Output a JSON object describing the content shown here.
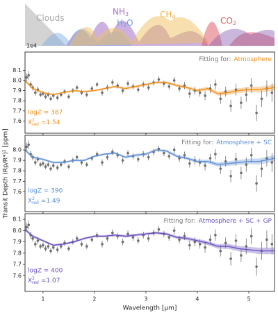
{
  "opacity_panel": {
    "labels": [
      {
        "base": "Clouds",
        "color": "#a8a8a8"
      },
      {
        "base": "NH",
        "sub": "3",
        "color": "#b070d0"
      },
      {
        "base": "H",
        "sub": "2",
        "tail": "O",
        "color": "#6aa0e0"
      },
      {
        "base": "CH",
        "sub": "4",
        "color": "#f0b040"
      },
      {
        "base": "CO",
        "sub": "2",
        "color": "#e05a5a"
      }
    ]
  },
  "chart_data": {
    "type": "line",
    "x_label": "Wavelength [μm]",
    "y_label": "Transit Depth (Rp/R*)² [ppm]",
    "y_offset_label": "1e4",
    "fitting_prefix": "Fitting for:",
    "chi2_symbol": "X",
    "chi2_sup": "2",
    "chi2_sub": "red",
    "xlim": [
      0.65,
      5.5
    ],
    "xticks": [
      1,
      2,
      3,
      4,
      5
    ],
    "observations": {
      "color": "#6e6e6e",
      "x": [
        0.68,
        0.72,
        0.76,
        0.8,
        0.85,
        0.9,
        0.95,
        1.0,
        1.05,
        1.1,
        1.15,
        1.2,
        1.28,
        1.35,
        1.42,
        1.5,
        1.58,
        1.66,
        1.75,
        1.85,
        1.95,
        2.05,
        2.15,
        2.25,
        2.35,
        2.45,
        2.55,
        2.65,
        2.75,
        2.85,
        2.95,
        3.05,
        3.15,
        3.25,
        3.35,
        3.45,
        3.55,
        3.65,
        3.75,
        3.85,
        3.95,
        4.05,
        4.15,
        4.25,
        4.35,
        4.45,
        4.55,
        4.65,
        4.75,
        4.85,
        4.95,
        5.05,
        5.15,
        5.25,
        5.35,
        5.45
      ],
      "values": [
        8.03,
        8.05,
        7.96,
        7.93,
        7.88,
        7.91,
        7.86,
        7.87,
        7.84,
        7.86,
        7.82,
        7.85,
        7.83,
        7.86,
        7.89,
        7.84,
        7.9,
        7.93,
        7.88,
        7.86,
        7.92,
        7.96,
        7.88,
        7.93,
        7.98,
        7.95,
        7.9,
        7.97,
        7.94,
        7.91,
        7.96,
        7.93,
        7.98,
        8.01,
        7.97,
        7.94,
        8.0,
        7.92,
        7.95,
        7.87,
        7.9,
        7.88,
        7.85,
        7.92,
        7.96,
        7.82,
        7.89,
        7.75,
        7.91,
        7.78,
        7.86,
        7.95,
        7.68,
        7.82,
        7.92,
        7.88
      ],
      "errors": [
        0.04,
        0.04,
        0.03,
        0.03,
        0.03,
        0.03,
        0.025,
        0.025,
        0.025,
        0.025,
        0.025,
        0.025,
        0.025,
        0.025,
        0.025,
        0.025,
        0.025,
        0.025,
        0.025,
        0.025,
        0.025,
        0.025,
        0.03,
        0.03,
        0.03,
        0.03,
        0.03,
        0.03,
        0.03,
        0.03,
        0.03,
        0.03,
        0.03,
        0.03,
        0.03,
        0.03,
        0.035,
        0.035,
        0.035,
        0.04,
        0.04,
        0.04,
        0.045,
        0.045,
        0.05,
        0.05,
        0.05,
        0.06,
        0.06,
        0.06,
        0.07,
        0.07,
        0.08,
        0.08,
        0.08,
        0.09
      ]
    },
    "model_x": [
      0.65,
      0.8,
      1.0,
      1.2,
      1.4,
      1.6,
      1.8,
      2.0,
      2.2,
      2.4,
      2.6,
      2.8,
      3.0,
      3.2,
      3.4,
      3.6,
      3.8,
      4.0,
      4.2,
      4.4,
      4.6,
      4.8,
      5.0,
      5.2,
      5.5
    ],
    "panels": [
      {
        "fit": "Atmosphere",
        "color": "#f0901c",
        "logz_label": "logZ = 387",
        "chi2_value": "=1.54",
        "ylim": [
          7.48,
          8.28
        ],
        "yticks": [
          7.6,
          7.7,
          7.8,
          7.9,
          {
            "value": 8.0,
            "label": "8.0"
          },
          8.1
        ],
        "model": {
          "values": [
            8.0,
            7.92,
            7.88,
            7.86,
            7.88,
            7.9,
            7.89,
            7.9,
            7.92,
            7.94,
            7.92,
            7.94,
            7.96,
            7.98,
            7.98,
            7.95,
            7.93,
            7.9,
            7.92,
            7.87,
            7.88,
            7.9,
            7.91,
            7.91,
            7.93
          ],
          "errors": [
            0.015,
            0.012,
            0.01,
            0.01,
            0.01,
            0.01,
            0.01,
            0.01,
            0.01,
            0.01,
            0.012,
            0.012,
            0.012,
            0.012,
            0.012,
            0.014,
            0.015,
            0.016,
            0.018,
            0.02,
            0.022,
            0.024,
            0.026,
            0.028,
            0.03
          ]
        }
      },
      {
        "fit": "Atmosphere + SC",
        "color": "#5b8fd8",
        "logz_label": "logZ = 390",
        "chi2_value": "=1.49",
        "ylim": [
          7.41,
          8.14
        ],
        "yticks": [
          7.6,
          7.7,
          7.8,
          7.9,
          {
            "value": 8.0,
            "label": "8.0"
          }
        ],
        "model": {
          "values": [
            8.0,
            7.93,
            7.91,
            7.88,
            7.88,
            7.9,
            7.9,
            7.94,
            7.96,
            7.97,
            7.93,
            7.95,
            7.96,
            8.0,
            7.99,
            7.94,
            7.92,
            7.89,
            7.89,
            7.86,
            7.87,
            7.88,
            7.89,
            7.89,
            7.92
          ],
          "errors": [
            0.015,
            0.012,
            0.01,
            0.01,
            0.01,
            0.01,
            0.01,
            0.01,
            0.01,
            0.01,
            0.012,
            0.012,
            0.012,
            0.012,
            0.012,
            0.014,
            0.015,
            0.016,
            0.018,
            0.02,
            0.022,
            0.024,
            0.026,
            0.028,
            0.03
          ]
        }
      },
      {
        "fit": "Atmosphere + SC + GP",
        "color": "#6a4fc0",
        "logz_label": "logZ = 400",
        "chi2_value": "=1.07",
        "ylim": [
          7.46,
          8.15
        ],
        "yticks": [
          7.6,
          7.7,
          7.8,
          7.9,
          {
            "value": 8.0,
            "label": "8.0"
          },
          8.1
        ],
        "model": {
          "values": [
            8.01,
            7.95,
            7.91,
            7.87,
            7.88,
            7.9,
            7.93,
            7.95,
            7.95,
            7.96,
            7.95,
            7.96,
            7.97,
            7.98,
            7.97,
            7.94,
            7.93,
            7.91,
            7.89,
            7.86,
            7.86,
            7.84,
            7.83,
            7.82,
            7.82
          ],
          "errors": [
            0.015,
            0.012,
            0.01,
            0.01,
            0.01,
            0.01,
            0.01,
            0.01,
            0.01,
            0.01,
            0.012,
            0.012,
            0.012,
            0.012,
            0.012,
            0.014,
            0.015,
            0.016,
            0.018,
            0.02,
            0.022,
            0.024,
            0.026,
            0.028,
            0.03
          ]
        }
      }
    ]
  }
}
